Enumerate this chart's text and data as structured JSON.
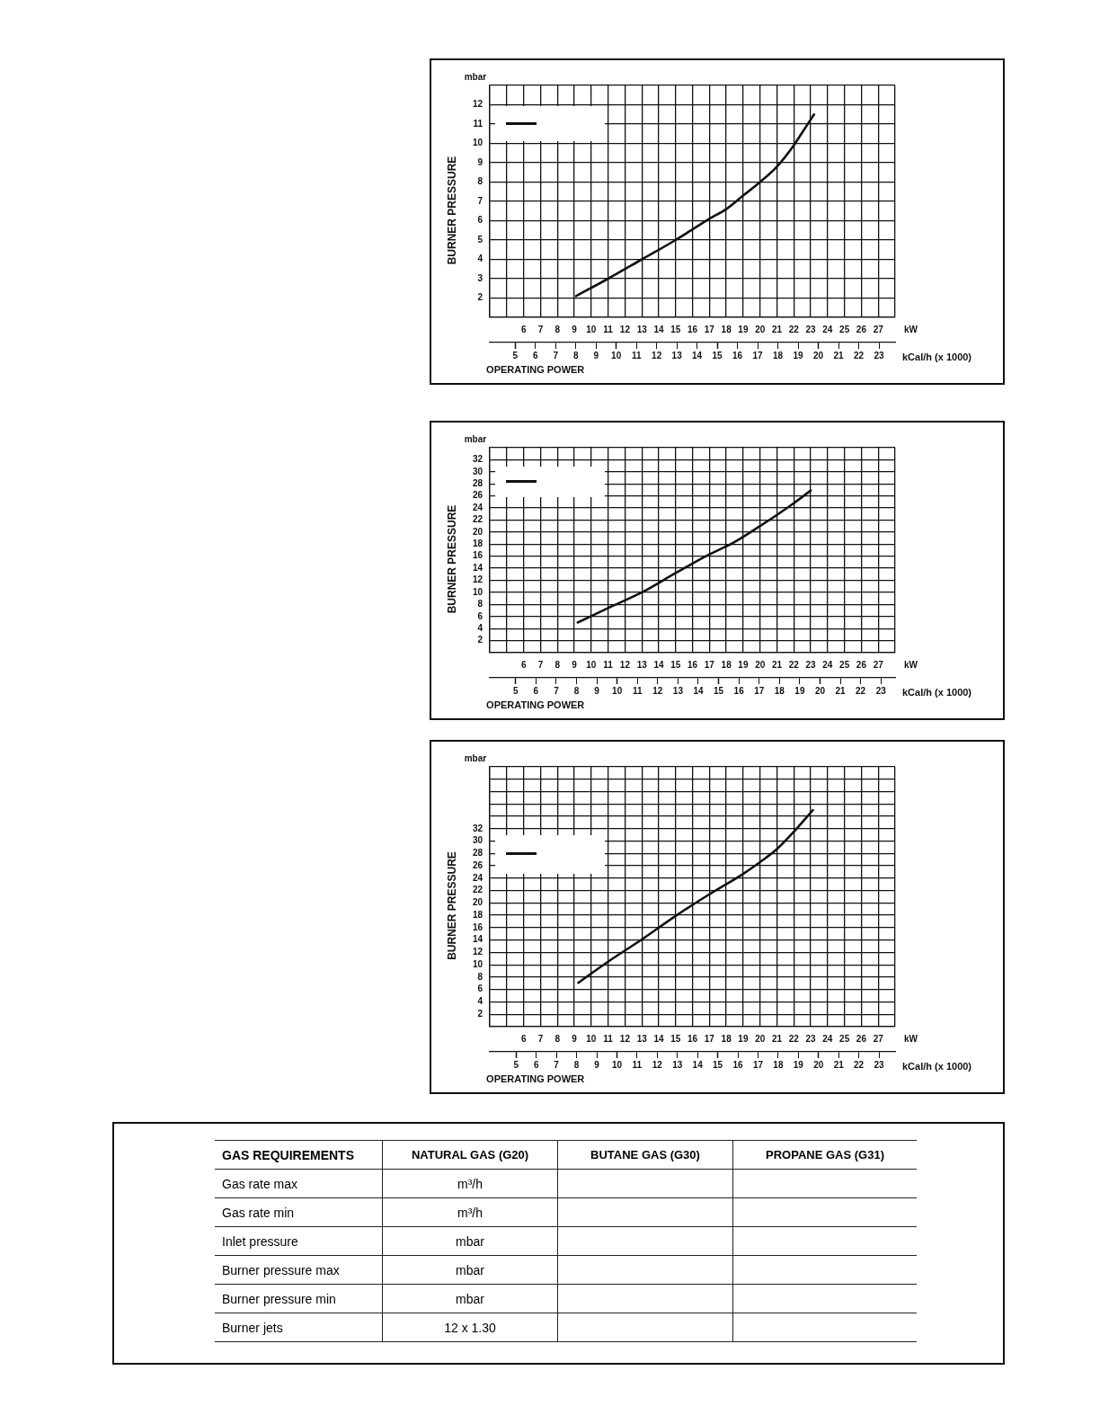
{
  "chart_data": [
    {
      "type": "line",
      "ylabel": "BURNER PRESSURE",
      "xlabel": "kW",
      "x2label": "kCal/h (x 1000)",
      "annotations": [
        "mbar",
        "OPERATING POWER"
      ],
      "grid": true,
      "x": [
        9.1,
        11,
        13,
        15,
        17,
        18,
        19,
        20,
        21,
        22,
        22.6,
        23.2
      ],
      "series": [
        {
          "color": "#111111",
          "values": [
            2.1,
            3.0,
            4.0,
            5.0,
            6.1,
            6.6,
            7.3,
            8.0,
            8.8,
            9.9,
            10.7,
            11.5
          ]
        }
      ],
      "xlim": [
        4,
        28
      ],
      "xticks": [
        {
          "value": 4,
          "label": null
        },
        {
          "value": 5,
          "label": null
        },
        6,
        7,
        8,
        9,
        10,
        11,
        12,
        13,
        14,
        15,
        16,
        17,
        18,
        19,
        20,
        21,
        22,
        23,
        24,
        25,
        26,
        27,
        {
          "value": 28,
          "label": null
        }
      ],
      "x2lim": [
        3.75,
        23.8
      ],
      "x2ticks": [
        5,
        6,
        7,
        8,
        9,
        10,
        11,
        12,
        13,
        14,
        15,
        16,
        17,
        18,
        19,
        20,
        21,
        22,
        23
      ],
      "ylim": [
        1,
        13
      ],
      "yticks": [
        {
          "value": 1,
          "label": null
        },
        2,
        3,
        4,
        5,
        6,
        7,
        8,
        9,
        10,
        11,
        12,
        {
          "value": 13,
          "label": null
        }
      ]
    },
    {
      "type": "line",
      "ylabel": "BURNER PRESSURE",
      "xlabel": "kW",
      "x2label": "kCal/h (x 1000)",
      "annotations": [
        "mbar",
        "OPERATING POWER"
      ],
      "grid": true,
      "x": [
        9.2,
        11,
        13,
        15,
        17,
        18.4,
        20,
        22,
        23
      ],
      "series": [
        {
          "color": "#111111",
          "values": [
            5.0,
            7.4,
            10.0,
            13.2,
            16.3,
            18.2,
            21.0,
            24.8,
            26.9
          ]
        }
      ],
      "xlim": [
        4,
        28
      ],
      "xticks": [
        {
          "value": 4,
          "label": null
        },
        {
          "value": 5,
          "label": null
        },
        6,
        7,
        8,
        9,
        10,
        11,
        12,
        13,
        14,
        15,
        16,
        17,
        18,
        19,
        20,
        21,
        22,
        23,
        24,
        25,
        26,
        27,
        {
          "value": 28,
          "label": null
        }
      ],
      "x2lim": [
        3.73,
        23.7
      ],
      "x2ticks": [
        5,
        6,
        7,
        8,
        9,
        10,
        11,
        12,
        13,
        14,
        15,
        16,
        17,
        18,
        19,
        20,
        21,
        22,
        23
      ],
      "ylim": [
        0,
        34
      ],
      "yticks": [
        {
          "value": 0,
          "label": null
        },
        2,
        4,
        6,
        8,
        10,
        12,
        14,
        16,
        18,
        20,
        22,
        24,
        26,
        28,
        30,
        32,
        {
          "value": 34,
          "label": null
        }
      ]
    },
    {
      "type": "line",
      "ylabel": "BURNER PRESSURE",
      "xlabel": "kW",
      "x2label": "kCal/h (x 1000)",
      "annotations": [
        "mbar",
        "OPERATING POWER"
      ],
      "grid": true,
      "x": [
        9.24,
        11,
        13,
        15,
        17,
        19,
        20,
        21,
        22,
        23,
        23.13
      ],
      "series": [
        {
          "color": "#111111",
          "values": [
            7.1,
            10.5,
            14.1,
            17.9,
            21.4,
            24.7,
            26.6,
            28.7,
            31.5,
            34.6,
            35.0
          ]
        }
      ],
      "xlim": [
        4,
        28
      ],
      "xticks": [
        {
          "value": 4,
          "label": null
        },
        {
          "value": 5,
          "label": null
        },
        6,
        7,
        8,
        9,
        10,
        11,
        12,
        13,
        14,
        15,
        16,
        17,
        18,
        19,
        20,
        21,
        22,
        23,
        24,
        25,
        26,
        27,
        {
          "value": 28,
          "label": null
        }
      ],
      "x2lim": [
        3.7,
        23.8
      ],
      "x2ticks": [
        5,
        6,
        7,
        8,
        9,
        10,
        11,
        12,
        13,
        14,
        15,
        16,
        17,
        18,
        19,
        20,
        21,
        22,
        23
      ],
      "ylim": [
        0,
        42
      ],
      "yticks": [
        {
          "value": 0,
          "label": null
        },
        2,
        4,
        6,
        8,
        10,
        12,
        14,
        16,
        18,
        20,
        22,
        24,
        26,
        28,
        30,
        32,
        {
          "value": 34,
          "label": null
        },
        {
          "value": 36,
          "label": null
        },
        {
          "value": 38,
          "label": null
        },
        {
          "value": 40,
          "label": null
        },
        {
          "value": 42,
          "label": null
        }
      ]
    },
    {
      "type": "other",
      "annotations": [
        "GAS REQUIREMENTS",
        "NATURAL GAS (G20)",
        "BUTANE GAS (G30)",
        "PROPANE GAS (G31)",
        "Gas rate max",
        "m³/h",
        "Gas rate min",
        "m³/h",
        "Inlet pressure",
        "mbar",
        "Burner pressure max",
        "mbar",
        "Burner pressure min",
        "mbar",
        "Burner jets",
        "12 x 1.30"
      ]
    }
  ]
}
